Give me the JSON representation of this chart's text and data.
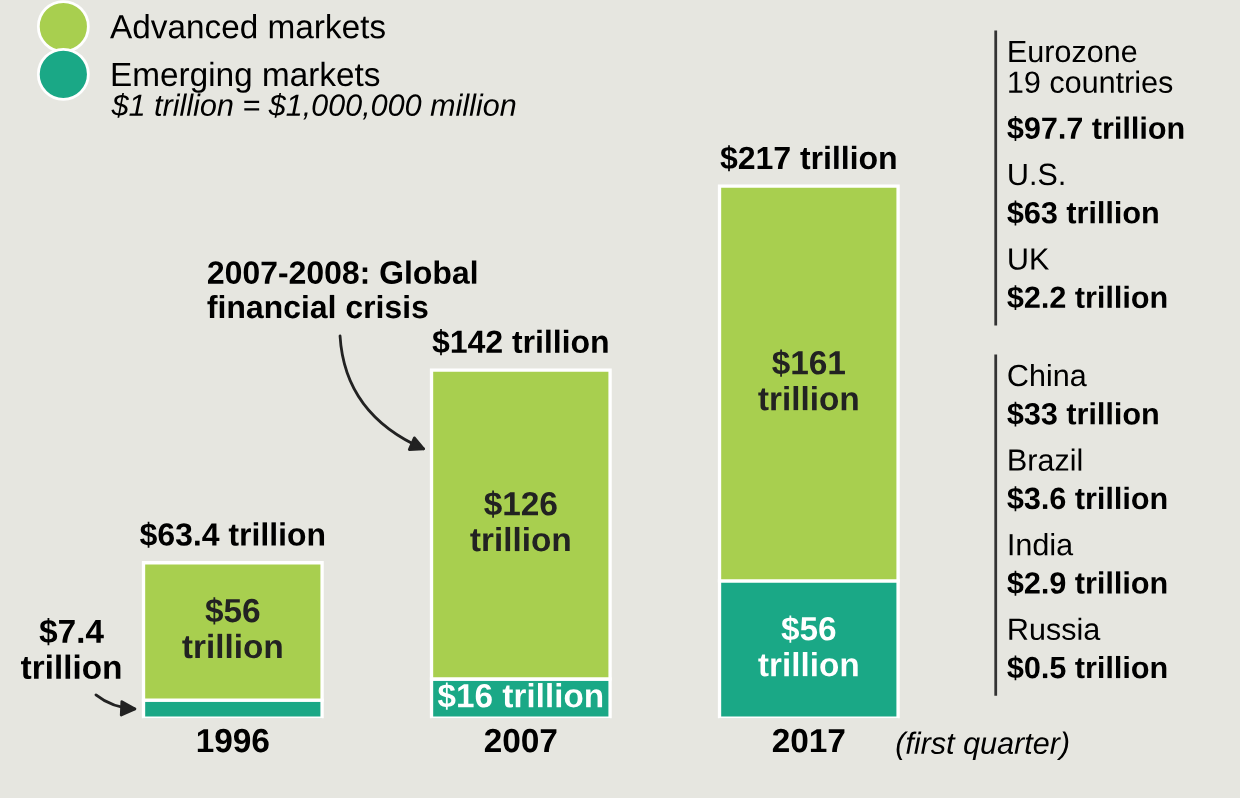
{
  "chart_data": {
    "type": "bar",
    "stacked": true,
    "categories": [
      "1996",
      "2007",
      "2017"
    ],
    "series": [
      {
        "name": "Emerging markets",
        "color": "#1aa886",
        "values": [
          7.4,
          16,
          56
        ],
        "value_labels": [
          "$7.4\ntrillion",
          "$16 trillion",
          "$56\ntrillion"
        ]
      },
      {
        "name": "Advanced markets",
        "color": "#a8cf4f",
        "values": [
          56,
          126,
          161
        ],
        "value_labels": [
          "$56\ntrillion",
          "$126\ntrillion",
          "$161\ntrillion"
        ]
      }
    ],
    "totals": [
      "$63.4 trillion",
      "$142 trillion",
      "$217 trillion"
    ],
    "legend": "top left",
    "annotations": [
      "$1 trillion = $1,000,000 million",
      "2007-2008: Global\nfinancial crisis",
      "(first quarter)",
      "Eurozone\n19 countries",
      "$97.7 trillion",
      "U.S.",
      "$63 trillion",
      "UK",
      "$2.2 trillion",
      "China",
      "$33 trillion",
      "Brazil",
      "$3.6 trillion",
      "India",
      "$2.9 trillion",
      "Russia",
      "$0.5 trillion"
    ]
  }
}
